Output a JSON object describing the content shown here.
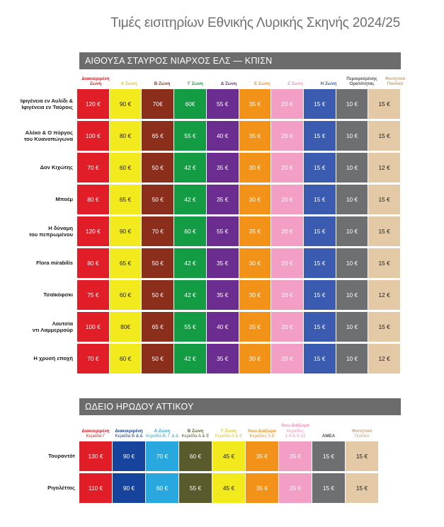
{
  "title": "Τιμές εισιτηρίων Εθνικής Λυρικής Σκηνής 2024/25",
  "colors": {
    "red": "#e11d27",
    "yellow": "#f2ea1d",
    "brown": "#8b2e1c",
    "green": "#149c45",
    "purple": "#6b2d8f",
    "orange": "#f39219",
    "pink": "#f39ec5",
    "blue": "#3a5bb0",
    "gray": "#6e6f71",
    "beige": "#e3c9a6",
    "navy": "#16439b",
    "lightblue": "#29a8df",
    "olive": "#5a5b2d",
    "ltgray": "#ededed",
    "cream": "#fbf7ee"
  },
  "section1": {
    "heading": "ΑΙΘΟΥΣΑ ΣΤΑΥΡΟΣ ΝΙΑΡΧΟΣ ΕΛΣ — ΚΠΙΣΝ",
    "headers": [
      {
        "lines": [
          "Διακεκριμένη",
          "Ζώνη"
        ],
        "color": "#e11d27"
      },
      {
        "lines": [
          "Α Ζώνη"
        ],
        "color": "#e1c41a"
      },
      {
        "lines": [
          "Β Ζώνη"
        ],
        "color": "#8b2e1c"
      },
      {
        "lines": [
          "Γ Ζώνη"
        ],
        "color": "#149c45"
      },
      {
        "lines": [
          "Δ Ζώνη"
        ],
        "color": "#6b2d8f"
      },
      {
        "lines": [
          "Ε Ζώνη"
        ],
        "color": "#f39219"
      },
      {
        "lines": [
          "Ζ Ζώνη"
        ],
        "color": "#f08dbb"
      },
      {
        "lines": [
          "Η Ζώνη"
        ],
        "color": "#3a5bb0"
      },
      {
        "lines": [
          "Περιορισμένης",
          "Ορατότητας"
        ],
        "color": "#555555"
      },
      {
        "lines": [
          "Φοιτητικό",
          "Παιδικό"
        ],
        "color": "#c7a57a"
      }
    ],
    "cell_colors": [
      "#e11d27",
      "#f2ea1d",
      "#8b2e1c",
      "#149c45",
      "#6b2d8f",
      "#f39219",
      "#f39ec5",
      "#3a5bb0",
      "#6e6f71",
      "#e3c9a6"
    ],
    "dark_text": [
      1,
      9
    ],
    "rows": [
      {
        "label": [
          "Ιφιγένεια εν Αυλίδι &",
          "Ιφιγένεια εν Ταύροις"
        ],
        "prices": [
          "120 €",
          "90 €",
          "70€",
          "60€",
          "55 €",
          "35 €",
          "20 €",
          "15 €",
          "10 €",
          "15 €"
        ]
      },
      {
        "label": [
          "Αλέκο & Ο πύργος",
          "του Κυανοπώγωνα"
        ],
        "prices": [
          "100 €",
          "80 €",
          "65 €",
          "55 €",
          "40 €",
          "35 €",
          "20 €",
          "15 €",
          "10 €",
          "15 €"
        ]
      },
      {
        "label": [
          "Δον Κιχώτης"
        ],
        "prices": [
          "70 €",
          "60 €",
          "50 €",
          "42 €",
          "35 €",
          "30 €",
          "20 €",
          "15 €",
          "10 €",
          "12 €"
        ]
      },
      {
        "label": [
          "Μποέμ"
        ],
        "prices": [
          "80 €",
          "65 €",
          "50 €",
          "42 €",
          "35 €",
          "30 €",
          "20 €",
          "15 €",
          "10 €",
          "15 €"
        ]
      },
      {
        "label": [
          "Η δύναμη",
          "του πεπρωμένου"
        ],
        "prices": [
          "120 €",
          "90 €",
          "70 €",
          "60 €",
          "55 €",
          "35 €",
          "20 €",
          "15 €",
          "10 €",
          "15 €"
        ]
      },
      {
        "label": [
          "Flora mirabilis"
        ],
        "prices": [
          "80 €",
          "65 €",
          "50 €",
          "42 €",
          "35 €",
          "30 €",
          "20 €",
          "15 €",
          "10 €",
          "15 €"
        ]
      },
      {
        "label": [
          "Τσαϊκόφσκι"
        ],
        "prices": [
          "75 €",
          "60 €",
          "50 €",
          "42 €",
          "35 €",
          "30 €",
          "20 €",
          "15 €",
          "10 €",
          "12 €"
        ]
      },
      {
        "label": [
          "Λουτσία",
          "ντι Λαμμερμούρ"
        ],
        "prices": [
          "100 €",
          "80€",
          "65 €",
          "55 €",
          "40 €",
          "35 €",
          "20 €",
          "15 €",
          "10 €",
          "15 €"
        ]
      },
      {
        "label": [
          "Η χρυσή εποχή"
        ],
        "prices": [
          "70 €",
          "60 €",
          "50 €",
          "42 €",
          "35 €",
          "30 €",
          "20 €",
          "15 €",
          "10 €",
          "12 €"
        ]
      }
    ]
  },
  "section2": {
    "heading": "ΩΔΕΙΟ ΗΡΩΔΟΥ ΑΤΤΙΚΟΥ",
    "headers": [
      {
        "lines": [
          "Διακεκριμένη"
        ],
        "sub": [
          "Κερκίδα Γ"
        ],
        "color": "#e11d27"
      },
      {
        "lines": [
          "Διακεκριμένη"
        ],
        "sub": [
          "Κερκίδα Β & Δ"
        ],
        "color": "#16439b"
      },
      {
        "lines": [
          "Α Ζώνη"
        ],
        "sub": [
          "Κερκίδα Β, Γ & Δ"
        ],
        "color": "#29a8df"
      },
      {
        "lines": [
          "Β Ζώνη"
        ],
        "sub": [
          "Κερκίδα Α & Ε"
        ],
        "color": "#5a5b2d"
      },
      {
        "lines": [
          "Γ Ζώνη"
        ],
        "sub": [
          "Κερκίδα Α & Ε"
        ],
        "color": "#e1c41a"
      },
      {
        "lines": [
          "Άνω Διάζωμα"
        ],
        "sub": [
          "Κερκίδες 5-8"
        ],
        "color": "#f39219"
      },
      {
        "lines": [
          "Άνω Διάζωμα"
        ],
        "sub": [
          "Κερκίδες",
          "1-4 & 9-12"
        ],
        "color": "#f08dbb"
      },
      {
        "lines": [
          "ΑΜΕΑ"
        ],
        "sub": [],
        "color": "#555555"
      },
      {
        "lines": [
          "Φοιτητικό"
        ],
        "sub": [
          "Παιδικό"
        ],
        "color": "#c7a57a"
      }
    ],
    "cell_colors": [
      "#e11d27",
      "#16439b",
      "#29a8df",
      "#5a5b2d",
      "#f2ea1d",
      "#f39219",
      "#f39ec5",
      "#6e6f71",
      "#e3c9a6"
    ],
    "dark_text": [
      4,
      8
    ],
    "rows": [
      {
        "label": [
          "Τουραντότ"
        ],
        "prices": [
          "130 €",
          "90 €",
          "70 €",
          "60 €",
          "45 €",
          "35 €",
          "25 €",
          "15 €",
          "15 €"
        ]
      },
      {
        "label": [
          "Ριγολέττος"
        ],
        "prices": [
          "110 €",
          "90 €",
          "60 €",
          "55 €",
          "45 €",
          "35 €",
          "25 €",
          "15 €",
          "15 €"
        ]
      }
    ]
  }
}
